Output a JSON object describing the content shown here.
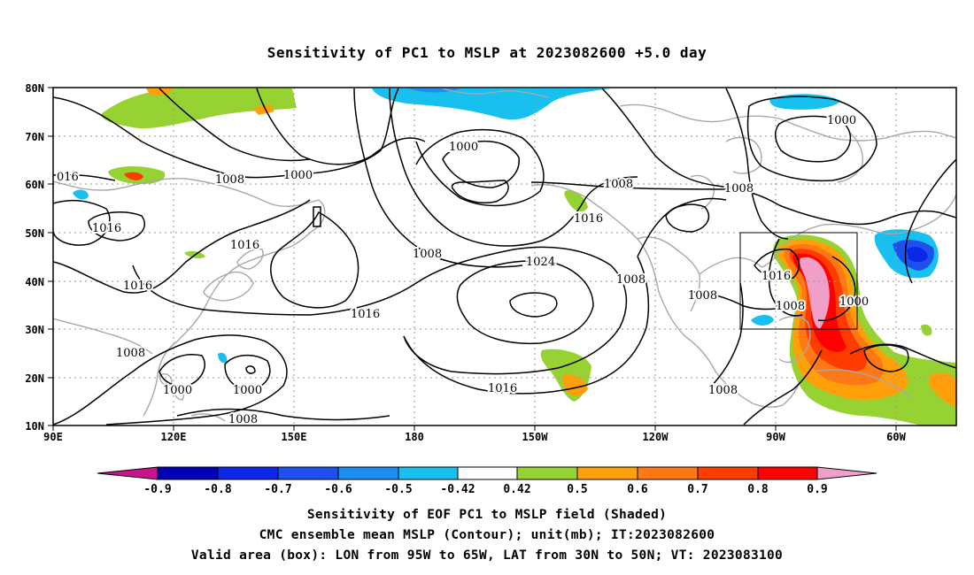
{
  "title": "Sensitivity of PC1 to MSLP at 2023082600 +5.0 day",
  "map": {
    "lon_labels": [
      "90E",
      "120E",
      "150E",
      "180",
      "150W",
      "120W",
      "90W",
      "60W"
    ],
    "lat_labels": [
      "10N",
      "20N",
      "30N",
      "40N",
      "50N",
      "60N",
      "70N",
      "80N"
    ],
    "contour_labels": [
      "016",
      "1016",
      "1016",
      "1016",
      "1008",
      "1000",
      "1000",
      "1008",
      "1016",
      "1024",
      "1008",
      "1016",
      "1008",
      "1008",
      "1008",
      "1000",
      "1016",
      "1008",
      "1008",
      "1000",
      "1000",
      "1016",
      "1008",
      "1008",
      "1000"
    ],
    "colors": {
      "neg_090": "#c8148c",
      "neg_080": "#0000b4",
      "neg_070": "#0a28e6",
      "neg_060": "#1e50f0",
      "neg_050": "#1e8cf0",
      "neg_042": "#18c0f0",
      "neutral": "#ffffff",
      "pos_050": "#96d232",
      "pos_060": "#ffa00a",
      "pos_070": "#ff7814",
      "pos_080": "#ff3c00",
      "pos_090": "#ff0000",
      "pos_max": "#f0a0c8"
    }
  },
  "colorbar": {
    "labels": [
      "-0.9",
      "-0.8",
      "-0.7",
      "-0.6",
      "-0.5",
      "-0.42",
      "0.42",
      "0.5",
      "0.6",
      "0.7",
      "0.8",
      "0.9"
    ]
  },
  "footer": {
    "line1": "Sensitivity of EOF PC1 to MSLP field (Shaded)",
    "line2": "CMC ensemble mean MSLP (Contour); unit(mb); IT:2023082600",
    "line3": "Valid area (box): LON from 95W to 65W, LAT from 30N to 50N; VT: 2023083100"
  }
}
